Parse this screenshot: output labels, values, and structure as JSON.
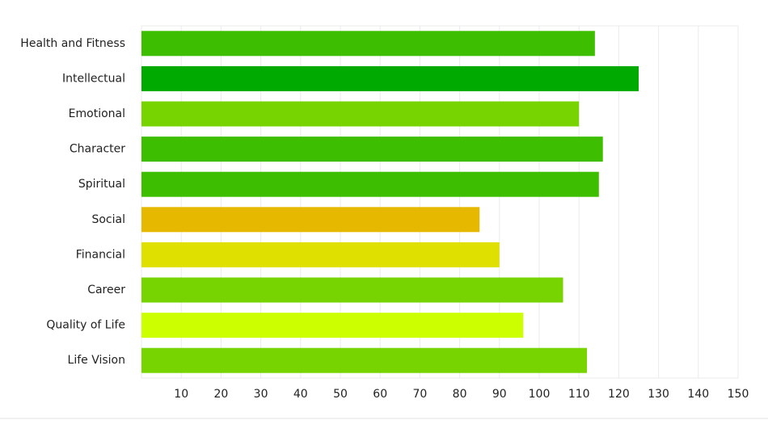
{
  "chart_data": {
    "type": "bar",
    "orientation": "horizontal",
    "categories": [
      "Health and Fitness",
      "Intellectual",
      "Emotional",
      "Character",
      "Spiritual",
      "Social",
      "Financial",
      "Career",
      "Quality of Life",
      "Life Vision"
    ],
    "values": [
      114,
      125,
      110,
      116,
      115,
      85,
      90,
      106,
      96,
      112
    ],
    "colors": [
      "#3dbf00",
      "#00aa00",
      "#77d400",
      "#3dbf00",
      "#3dbf00",
      "#e6b800",
      "#e0e000",
      "#77d400",
      "#ccff00",
      "#77d400"
    ],
    "xlim": [
      0,
      150
    ],
    "xticks": [
      10,
      20,
      30,
      40,
      50,
      60,
      70,
      80,
      90,
      100,
      110,
      120,
      130,
      140,
      150
    ],
    "grid": true
  }
}
